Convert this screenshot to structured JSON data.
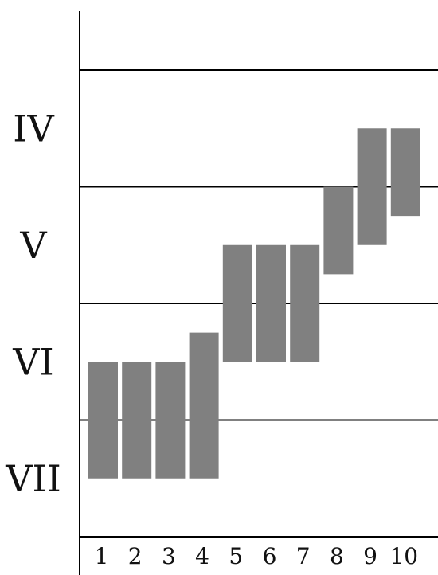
{
  "chart_data": {
    "type": "bar",
    "subtype": "floating-range",
    "title": "",
    "xlabel": "",
    "ylabel": "",
    "categories": [
      "1",
      "2",
      "3",
      "4",
      "5",
      "6",
      "7",
      "8",
      "9",
      "10"
    ],
    "zones": [
      "IV",
      "V",
      "VI",
      "VII"
    ],
    "zone_scale": "IV = 0 to 1, V = 1 to 2, VI = 2 to 3, VII = 3 to 4 (top to bottom)",
    "ranges": [
      {
        "category": "1",
        "from": 2.5,
        "to": 3.5
      },
      {
        "category": "2",
        "from": 2.5,
        "to": 3.5
      },
      {
        "category": "3",
        "from": 2.5,
        "to": 3.5
      },
      {
        "category": "4",
        "from": 2.25,
        "to": 3.5
      },
      {
        "category": "5",
        "from": 1.5,
        "to": 2.5
      },
      {
        "category": "6",
        "from": 1.5,
        "to": 2.5
      },
      {
        "category": "7",
        "from": 1.5,
        "to": 2.5
      },
      {
        "category": "8",
        "from": 1.0,
        "to": 1.75
      },
      {
        "category": "9",
        "from": 0.5,
        "to": 1.5
      },
      {
        "category": "10",
        "from": 0.5,
        "to": 1.25
      }
    ],
    "bar_color": "#808080",
    "grid": true
  }
}
